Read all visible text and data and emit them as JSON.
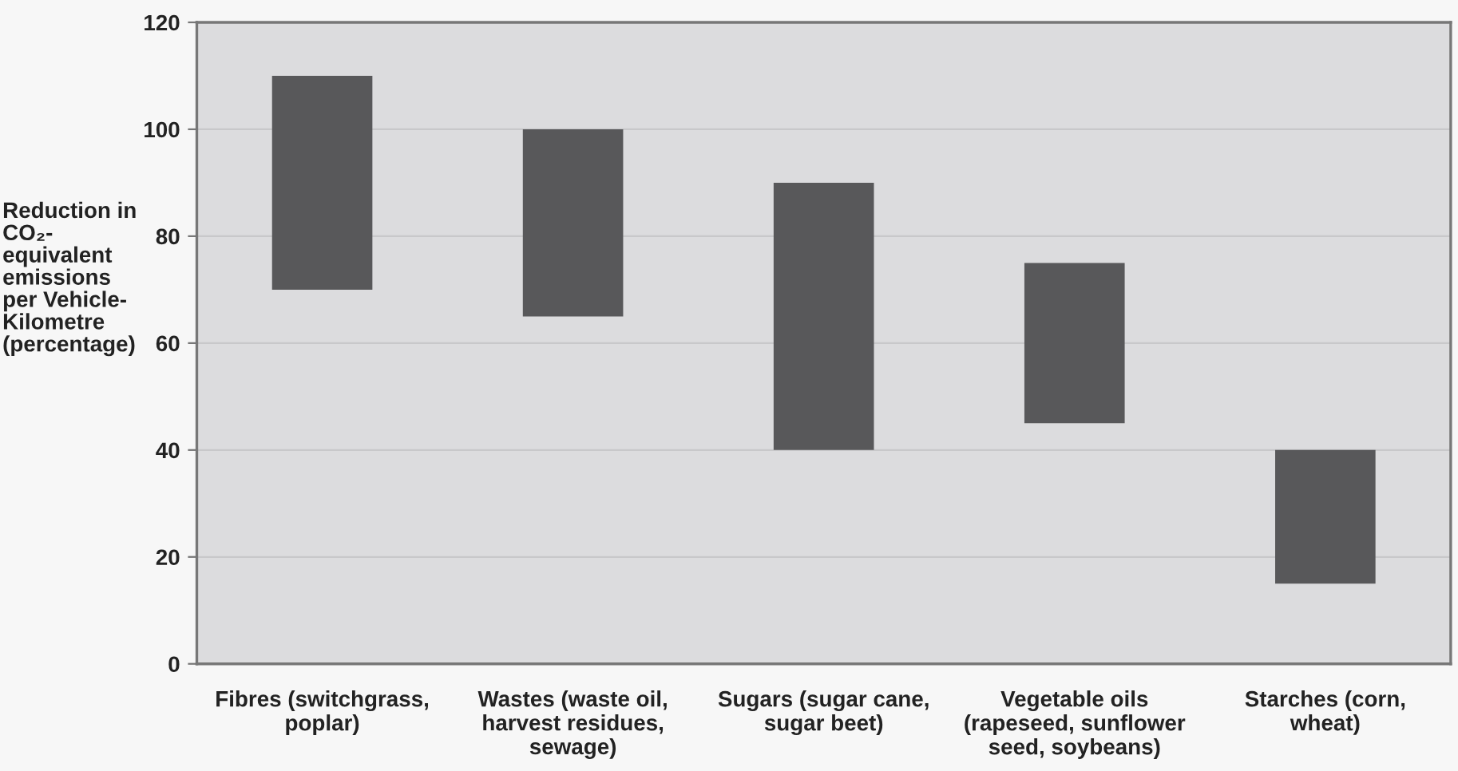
{
  "chart_data": {
    "type": "bar",
    "ylabel": "Reduction in\nCO₂-\nequivalent\nemissions\nper Vehicle-\nKilometre\n(percentage)",
    "categories": [
      "Fibres (switchgrass,\npoplar)",
      "Wastes (waste oil,\nharvest residues,\nsewage)",
      "Sugars (sugar cane,\nsugar beet)",
      "Vegetable oils\n(rapeseed, sunflower\nseed, soybeans)",
      "Starches (corn,\nwheat)"
    ],
    "base": [
      70,
      65,
      40,
      45,
      15
    ],
    "values": [
      40,
      35,
      50,
      30,
      25
    ],
    "color": "#58585a",
    "ylim": [
      0,
      120
    ],
    "yticks": [
      0,
      20,
      40,
      60,
      80,
      100,
      120
    ],
    "grid": "y"
  }
}
